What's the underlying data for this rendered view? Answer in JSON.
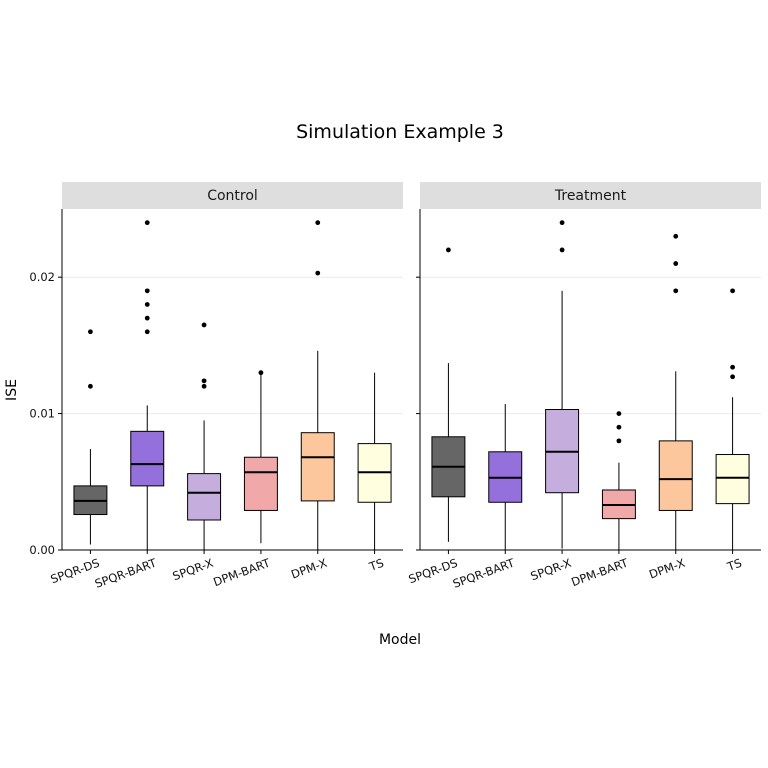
{
  "title": "Simulation Example 3",
  "xlabel": "Model",
  "ylabel": "ISE",
  "chart_data": {
    "type": "boxplot",
    "title": "Simulation Example 3",
    "xlabel": "Model",
    "ylabel": "ISE",
    "ylim": [
      0,
      0.025
    ],
    "yticks": [
      0,
      0.01,
      0.02
    ],
    "ytick_labels": [
      "0.00",
      "0.01",
      "0.02"
    ],
    "grid": "horizontal",
    "categories": [
      "SPQR-DS",
      "SPQR-BART",
      "SPQR-X",
      "DPM-BART",
      "DPM-X",
      "TS"
    ],
    "colors": [
      "#666666",
      "#9370DB",
      "#C5AEDD",
      "#F0A8A8",
      "#FCC79C",
      "#FFFFE0"
    ],
    "panels": [
      {
        "label": "Control",
        "boxes": [
          {
            "whisker_low": 0.0004,
            "q1": 0.0026,
            "median": 0.0036,
            "q3": 0.0047,
            "whisker_high": 0.0074,
            "outliers": [
              0.012,
              0.016
            ]
          },
          {
            "whisker_low": 0.0,
            "q1": 0.0047,
            "median": 0.0063,
            "q3": 0.0087,
            "whisker_high": 0.0106,
            "outliers": [
              0.016,
              0.017,
              0.018,
              0.019,
              0.024
            ]
          },
          {
            "whisker_low": 0.0,
            "q1": 0.0022,
            "median": 0.0042,
            "q3": 0.0056,
            "whisker_high": 0.0095,
            "outliers": [
              0.012,
              0.0124,
              0.0165
            ]
          },
          {
            "whisker_low": 0.0005,
            "q1": 0.0029,
            "median": 0.0057,
            "q3": 0.0068,
            "whisker_high": 0.013,
            "outliers": [
              0.013
            ]
          },
          {
            "whisker_low": 0.0,
            "q1": 0.0036,
            "median": 0.0068,
            "q3": 0.0086,
            "whisker_high": 0.0146,
            "outliers": [
              0.0203,
              0.024
            ]
          },
          {
            "whisker_low": 0.0,
            "q1": 0.0035,
            "median": 0.0057,
            "q3": 0.0078,
            "whisker_high": 0.013,
            "outliers": []
          }
        ]
      },
      {
        "label": "Treatment",
        "boxes": [
          {
            "whisker_low": 0.0006,
            "q1": 0.0039,
            "median": 0.0061,
            "q3": 0.0083,
            "whisker_high": 0.0137,
            "outliers": [
              0.022
            ]
          },
          {
            "whisker_low": 0.0,
            "q1": 0.0035,
            "median": 0.0053,
            "q3": 0.0072,
            "whisker_high": 0.0107,
            "outliers": []
          },
          {
            "whisker_low": 0.0001,
            "q1": 0.0042,
            "median": 0.0072,
            "q3": 0.0103,
            "whisker_high": 0.019,
            "outliers": [
              0.022,
              0.024
            ]
          },
          {
            "whisker_low": 0.0,
            "q1": 0.0023,
            "median": 0.0033,
            "q3": 0.0044,
            "whisker_high": 0.0064,
            "outliers": [
              0.008,
              0.009,
              0.01
            ]
          },
          {
            "whisker_low": 0.0,
            "q1": 0.0029,
            "median": 0.0052,
            "q3": 0.008,
            "whisker_high": 0.0131,
            "outliers": [
              0.019,
              0.021,
              0.023
            ]
          },
          {
            "whisker_low": 0.0,
            "q1": 0.0034,
            "median": 0.0053,
            "q3": 0.007,
            "whisker_high": 0.0112,
            "outliers": [
              0.0127,
              0.0134,
              0.019
            ]
          }
        ]
      }
    ]
  }
}
